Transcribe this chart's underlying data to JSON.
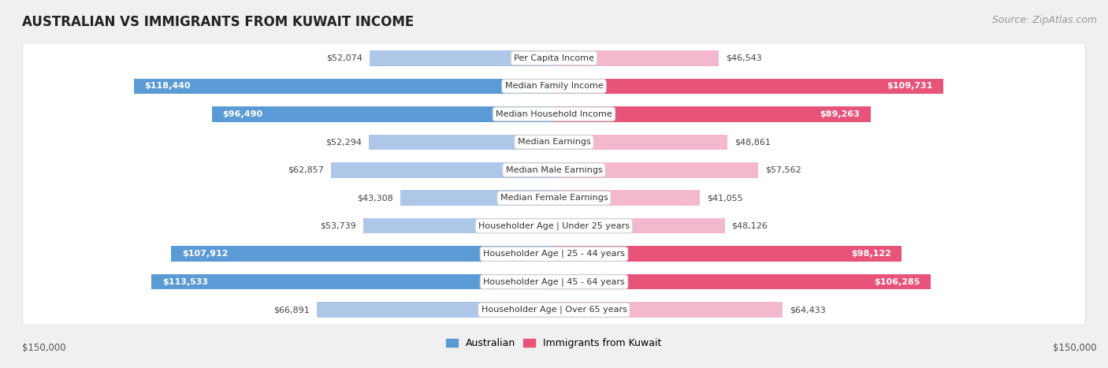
{
  "title": "AUSTRALIAN VS IMMIGRANTS FROM KUWAIT INCOME",
  "source": "Source: ZipAtlas.com",
  "categories": [
    "Per Capita Income",
    "Median Family Income",
    "Median Household Income",
    "Median Earnings",
    "Median Male Earnings",
    "Median Female Earnings",
    "Householder Age | Under 25 years",
    "Householder Age | 25 - 44 years",
    "Householder Age | 45 - 64 years",
    "Householder Age | Over 65 years"
  ],
  "australian_values": [
    52074,
    118440,
    96490,
    52294,
    62857,
    43308,
    53739,
    107912,
    113533,
    66891
  ],
  "kuwait_values": [
    46543,
    109731,
    89263,
    48861,
    57562,
    41055,
    48126,
    98122,
    106285,
    64433
  ],
  "australian_labels": [
    "$52,074",
    "$118,440",
    "$96,490",
    "$52,294",
    "$62,857",
    "$43,308",
    "$53,739",
    "$107,912",
    "$113,533",
    "$66,891"
  ],
  "kuwait_labels": [
    "$46,543",
    "$109,731",
    "$89,263",
    "$48,861",
    "$57,562",
    "$41,055",
    "$48,126",
    "$98,122",
    "$106,285",
    "$64,433"
  ],
  "max_value": 150000,
  "australian_color_low": "#aec6e8",
  "australian_color_high": "#5b9bd5",
  "kuwait_color_low": "#f4b8ce",
  "kuwait_color_high": "#e8537a",
  "high_threshold": 80000,
  "bg_color": "#f0f0f0",
  "row_bg_color": "#ffffff",
  "row_border_color": "#d0d0d0",
  "legend_australian": "Australian",
  "legend_kuwait": "Immigrants from Kuwait",
  "xlabel_left": "$150,000",
  "xlabel_right": "$150,000",
  "title_fontsize": 12,
  "source_fontsize": 9,
  "label_fontsize": 8,
  "category_fontsize": 8
}
